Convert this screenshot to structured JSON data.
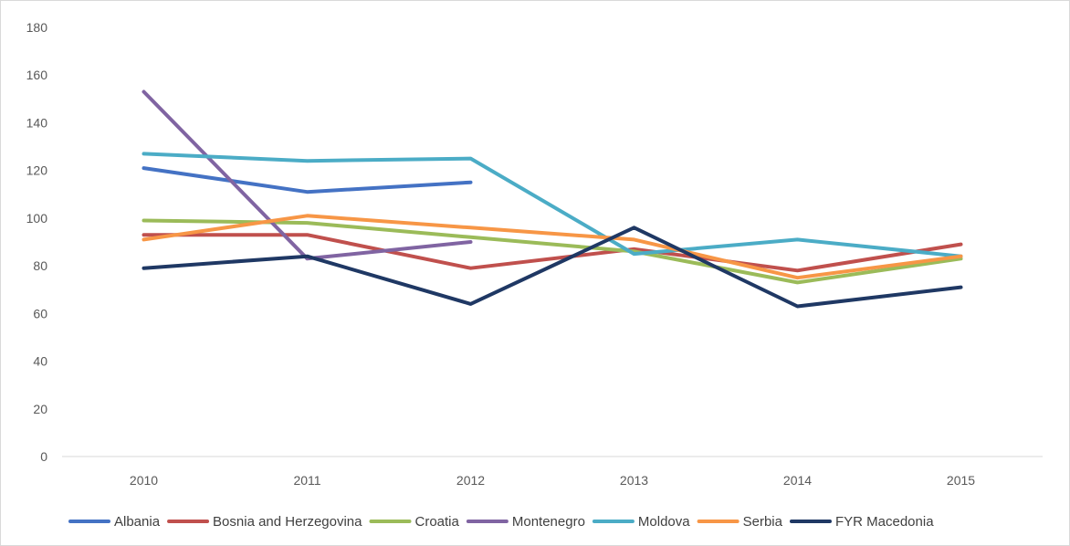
{
  "chart_data": {
    "type": "line",
    "title": "",
    "xlabel": "",
    "ylabel": "",
    "categories": [
      "2010",
      "2011",
      "2012",
      "2013",
      "2014",
      "2015"
    ],
    "ylim": [
      0,
      180
    ],
    "yticks": [
      0,
      20,
      40,
      60,
      80,
      100,
      120,
      140,
      160,
      180
    ],
    "grid": false,
    "legend_position": "bottom",
    "series": [
      {
        "name": "Albania",
        "color": "#4472C4",
        "values": [
          121,
          111,
          115,
          null,
          null,
          null
        ]
      },
      {
        "name": "Bosnia and Herzegovina",
        "color": "#C0504D",
        "values": [
          93,
          93,
          79,
          87,
          78,
          89
        ]
      },
      {
        "name": "Croatia",
        "color": "#9BBB59",
        "values": [
          99,
          98,
          92,
          86,
          73,
          83
        ]
      },
      {
        "name": "Montenegro",
        "color": "#8064A2",
        "values": [
          153,
          83,
          90,
          null,
          null,
          null
        ]
      },
      {
        "name": "Moldova",
        "color": "#4BACC6",
        "values": [
          127,
          124,
          125,
          85,
          91,
          84
        ]
      },
      {
        "name": "Serbia",
        "color": "#F79646",
        "values": [
          91,
          101,
          96,
          91,
          75,
          84
        ]
      },
      {
        "name": "FYR Macedonia",
        "color": "#1F3864",
        "values": [
          79,
          84,
          64,
          96,
          63,
          71
        ]
      }
    ]
  }
}
